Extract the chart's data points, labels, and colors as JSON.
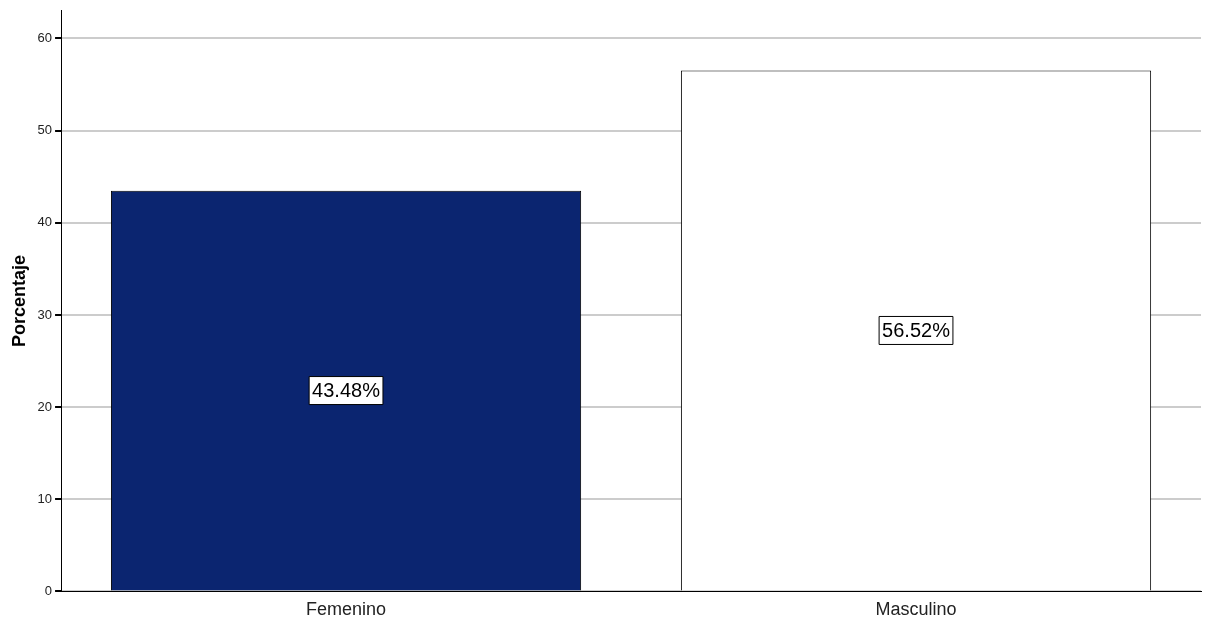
{
  "chart_data": {
    "type": "bar",
    "ylabel": "Porcentaje",
    "categories": [
      "Femenino",
      "Masculino"
    ],
    "values": [
      43.48,
      56.52
    ],
    "colors": [
      "#0b2570",
      "#ffffff"
    ],
    "value_labels": [
      "43.48%",
      "56.52%"
    ],
    "ylim": [
      0,
      63
    ],
    "yticks": [
      0,
      10,
      20,
      30,
      40,
      50,
      60
    ],
    "grid": "y",
    "legend": false
  }
}
